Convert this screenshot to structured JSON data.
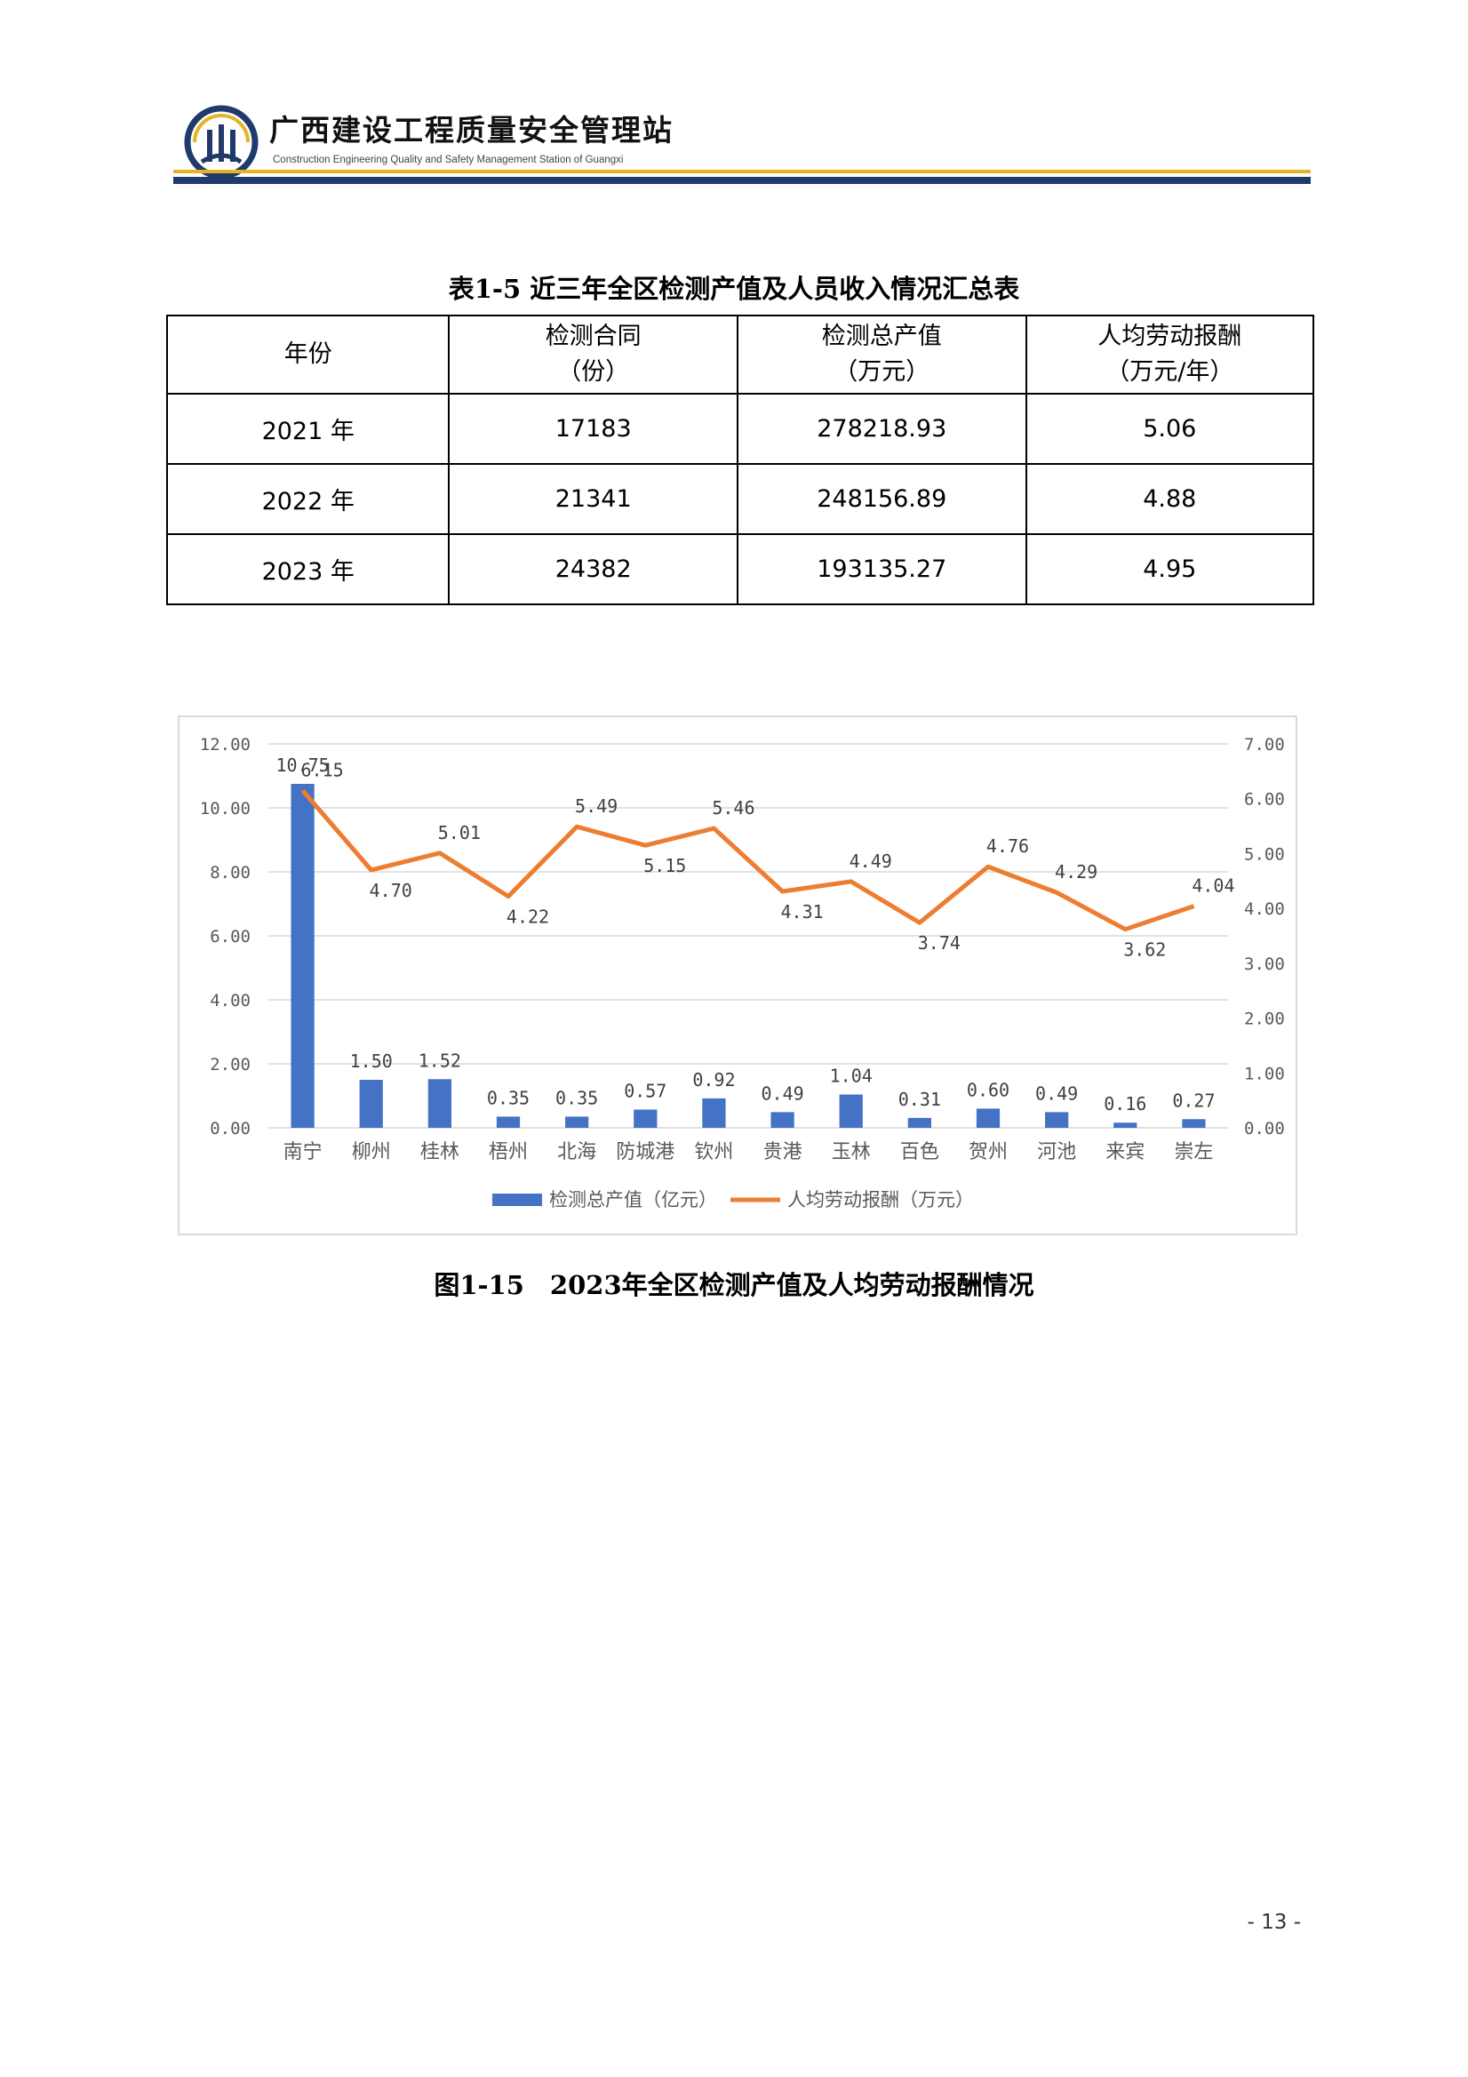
{
  "header": {
    "org_name": "广西建设工程质量安全管理站",
    "org_en": "Construction Engineering Quality and Safety Management Station of Guangxi",
    "colors": {
      "gold": "#e6b422",
      "navy": "#1f3a6b"
    }
  },
  "table": {
    "title": "表1-5 近三年全区检测产值及人员收入情况汇总表",
    "headers": [
      {
        "main": "年份",
        "sub": ""
      },
      {
        "main": "检测合同",
        "sub": "（份）"
      },
      {
        "main": "检测总产值",
        "sub": "（万元）"
      },
      {
        "main": "人均劳动报酬",
        "sub": "（万元/年）"
      }
    ],
    "rows": [
      [
        "2021 年",
        "17183",
        "278218.93",
        "5.06"
      ],
      [
        "2022 年",
        "21341",
        "248156.89",
        "4.88"
      ],
      [
        "2023 年",
        "24382",
        "193135.27",
        "4.95"
      ]
    ]
  },
  "chart_data": {
    "type": "bar+line",
    "categories": [
      "南宁",
      "柳州",
      "桂林",
      "梧州",
      "北海",
      "防城港",
      "钦州",
      "贵港",
      "玉林",
      "百色",
      "贺州",
      "河池",
      "来宾",
      "崇左"
    ],
    "series": [
      {
        "name": "检测总产值（亿元）",
        "type": "bar",
        "axis": "left",
        "color": "#4472c4",
        "values": [
          10.75,
          1.5,
          1.52,
          0.35,
          0.35,
          0.57,
          0.92,
          0.49,
          1.04,
          0.31,
          0.6,
          0.49,
          0.16,
          0.27
        ]
      },
      {
        "name": "人均劳动报酬（万元）",
        "type": "line",
        "axis": "right",
        "color": "#ed7d31",
        "values": [
          6.15,
          4.7,
          5.01,
          4.22,
          5.49,
          5.15,
          5.46,
          4.31,
          4.49,
          3.74,
          4.76,
          4.29,
          3.62,
          4.04
        ]
      }
    ],
    "left_axis": {
      "ylim": [
        0,
        12
      ],
      "ticks": [
        "0.00",
        "2.00",
        "4.00",
        "6.00",
        "8.00",
        "10.00",
        "12.00"
      ]
    },
    "right_axis": {
      "ylim": [
        0,
        7
      ],
      "ticks": [
        "0.00",
        "1.00",
        "2.00",
        "3.00",
        "4.00",
        "5.00",
        "6.00",
        "7.00"
      ]
    },
    "grid": true,
    "legend": "bottom",
    "caption": "图1-15　2023年全区检测产值及人均劳动报酬情况"
  },
  "page_number": "- 13 -"
}
